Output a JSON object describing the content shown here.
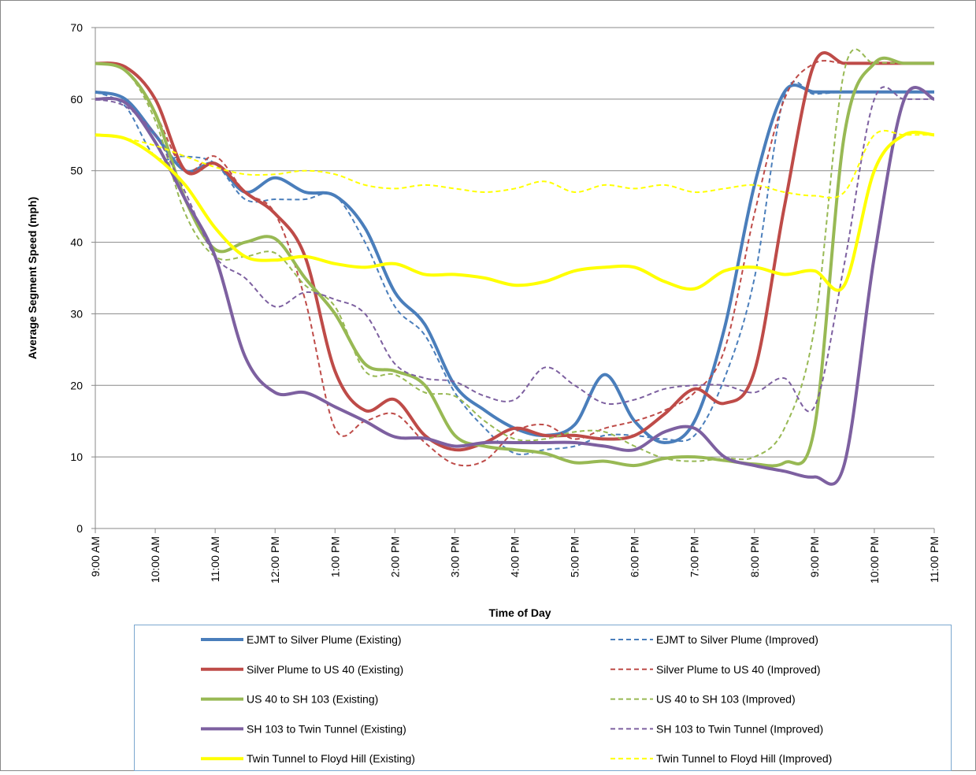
{
  "chart_data": {
    "type": "line",
    "x_label": "Time of Day",
    "y_label": "Average Segment Speed (mph)",
    "x": [
      9,
      9.5,
      10,
      10.5,
      11,
      11.5,
      12,
      12.5,
      13,
      13.5,
      14,
      14.5,
      15,
      15.5,
      16,
      16.5,
      17,
      17.5,
      18,
      18.5,
      19,
      19.5,
      20,
      20.5,
      21,
      21.5,
      22,
      22.5,
      23
    ],
    "xlim": [
      9,
      23
    ],
    "xticks": [
      {
        "value": 9,
        "label": "9:00 AM"
      },
      {
        "value": 10,
        "label": "10:00 AM"
      },
      {
        "value": 11,
        "label": "11:00 AM"
      },
      {
        "value": 12,
        "label": "12:00 PM"
      },
      {
        "value": 13,
        "label": "1:00 PM"
      },
      {
        "value": 14,
        "label": "2:00 PM"
      },
      {
        "value": 15,
        "label": "3:00 PM"
      },
      {
        "value": 16,
        "label": "4:00 PM"
      },
      {
        "value": 17,
        "label": "5:00 PM"
      },
      {
        "value": 18,
        "label": "6:00 PM"
      },
      {
        "value": 19,
        "label": "7:00 PM"
      },
      {
        "value": 20,
        "label": "8:00 PM"
      },
      {
        "value": 21,
        "label": "9:00 PM"
      },
      {
        "value": 22,
        "label": "10:00 PM"
      },
      {
        "value": 23,
        "label": "11:00 PM"
      }
    ],
    "ylim": [
      0,
      70
    ],
    "yticks": [
      0,
      10,
      20,
      30,
      40,
      50,
      60,
      70
    ],
    "grid": true,
    "series": [
      {
        "name": "EJMT to Silver Plume (Existing)",
        "color": "#4a7ebb",
        "style": "solid",
        "values": [
          61,
          60,
          55,
          50,
          51,
          47,
          49,
          47,
          46.5,
          42,
          33,
          28.5,
          20,
          16.5,
          14,
          13,
          14.5,
          21.5,
          15,
          12,
          15,
          28,
          48,
          61,
          61,
          61,
          61,
          61,
          61
        ]
      },
      {
        "name": "EJMT to Silver Plume (Improved)",
        "color": "#4a7ebb",
        "style": "dashed",
        "values": [
          61,
          59,
          52,
          52,
          51,
          46,
          46,
          46,
          46.5,
          40,
          31,
          27,
          19,
          14,
          10.5,
          11,
          11.5,
          13,
          13,
          12.5,
          13,
          21,
          35,
          60.5,
          60.7,
          61,
          61,
          61,
          61
        ]
      },
      {
        "name": "Silver Plume to US 40 (Existing)",
        "color": "#be4b48",
        "style": "solid",
        "values": [
          65,
          64.5,
          60,
          50,
          51,
          47,
          44,
          38,
          22,
          16.5,
          18,
          13,
          11,
          12,
          14,
          13,
          13,
          12.5,
          13,
          16,
          19.5,
          17.5,
          22,
          45,
          65,
          65,
          65,
          65,
          65
        ]
      },
      {
        "name": "Silver Plume to US 40 (Improved)",
        "color": "#be4b48",
        "style": "dashed",
        "values": [
          65,
          64,
          58,
          50,
          52,
          47,
          44,
          32,
          14,
          15,
          16,
          12,
          9,
          9.5,
          13.5,
          14.5,
          12.5,
          14,
          15,
          16.5,
          19,
          25,
          44,
          60,
          65,
          65,
          65,
          65,
          65
        ]
      },
      {
        "name": "US 40 to SH 103 (Existing)",
        "color": "#98b954",
        "style": "solid",
        "values": [
          65,
          64,
          58,
          46,
          39,
          40,
          40.5,
          35,
          30,
          23,
          22,
          20,
          13,
          11.5,
          11,
          10.5,
          9.2,
          9.4,
          8.8,
          9.8,
          10,
          9.5,
          9,
          9.2,
          14,
          55,
          65,
          65,
          65
        ]
      },
      {
        "name": "US 40 to SH 103 (Improved)",
        "color": "#98b954",
        "style": "dashed",
        "values": [
          65,
          64,
          57,
          44,
          38,
          38,
          38.5,
          34,
          31,
          22,
          21.5,
          19,
          18.5,
          15,
          12.5,
          12.5,
          13.5,
          13.5,
          11.5,
          9.8,
          9.4,
          9.8,
          10,
          14,
          28,
          64,
          65,
          65,
          65
        ]
      },
      {
        "name": "SH 103 to Twin Tunnel (Existing)",
        "color": "#7d60a0",
        "style": "solid",
        "values": [
          60,
          59.5,
          54,
          46,
          38,
          24,
          19,
          19,
          17,
          15,
          12.8,
          12.6,
          11.5,
          12,
          12,
          12,
          12,
          11.5,
          11,
          13.5,
          14,
          10,
          8.8,
          8,
          7.2,
          9,
          38,
          60,
          60
        ]
      },
      {
        "name": "SH 103 to Twin Tunnel (Improved)",
        "color": "#7d60a0",
        "style": "dashed",
        "values": [
          60,
          59,
          55,
          47,
          38,
          35,
          31,
          33,
          32,
          30,
          23,
          21,
          20.5,
          18.5,
          18,
          22.5,
          20,
          17.5,
          18,
          19.5,
          20,
          20,
          19,
          21,
          17,
          37,
          60,
          60,
          60
        ]
      },
      {
        "name": "Twin Tunnel to Floyd Hill (Existing)",
        "color": "#ffff00",
        "style": "solid",
        "values": [
          55,
          54.5,
          52,
          48,
          42,
          38,
          37.5,
          38,
          37,
          36.5,
          37,
          35.5,
          35.5,
          35,
          34,
          34.5,
          36,
          36.5,
          36.5,
          34.5,
          33.5,
          36,
          36.5,
          35.5,
          36,
          34,
          50,
          55,
          55
        ]
      },
      {
        "name": "Twin Tunnel to Floyd Hill (Improved)",
        "color": "#ffff00",
        "style": "dashed",
        "values": [
          55,
          54.5,
          53.5,
          52,
          50.5,
          49.5,
          49.5,
          50,
          49.5,
          48,
          47.5,
          48,
          47.5,
          47,
          47.5,
          48.5,
          47,
          48,
          47.5,
          48,
          47,
          47.5,
          48,
          47,
          46.5,
          47,
          55,
          55,
          55
        ]
      }
    ]
  }
}
